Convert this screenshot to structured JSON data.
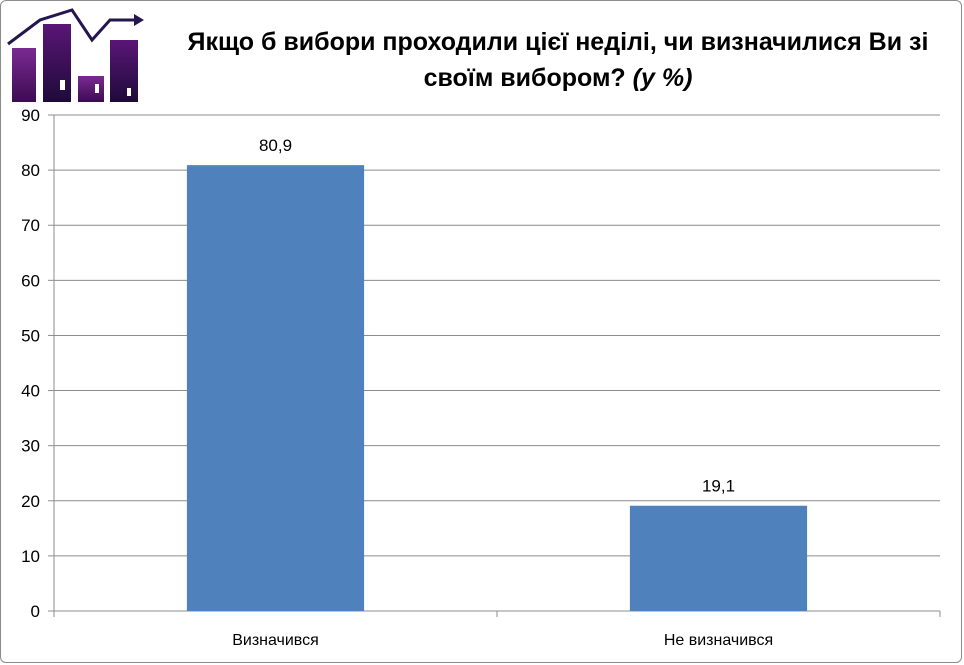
{
  "chart_data": {
    "type": "bar",
    "title": "Якщо б вибори проходили цієї неділі, чи визначилися  Ви зі своїм вибором?",
    "title_unit": "(у %)",
    "categories": [
      "Визначився",
      "Не визначився"
    ],
    "values": [
      80.9,
      19.1
    ],
    "value_labels": [
      "80,9",
      "19,1"
    ],
    "xlabel": "",
    "ylabel": "",
    "ylim": [
      0,
      90
    ],
    "yticks": [
      0,
      10,
      20,
      30,
      40,
      50,
      60,
      70,
      80,
      90
    ],
    "grid": true,
    "legend": "none",
    "bar_color": "#4f81bd"
  },
  "logo": {
    "bar_color": "#5b1070",
    "arrow_color": "#24174f"
  }
}
